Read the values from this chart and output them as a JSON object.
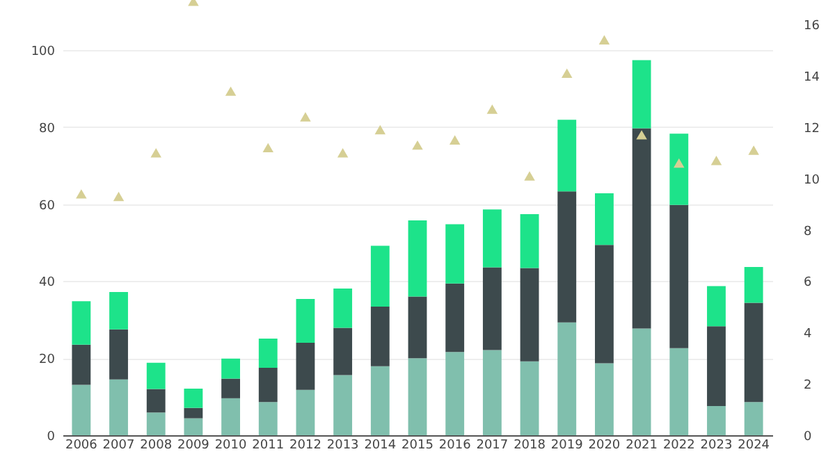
{
  "chart_data": {
    "type": "bar",
    "stacked": true,
    "categories": [
      "2006",
      "2007",
      "2008",
      "2009",
      "2010",
      "2011",
      "2012",
      "2013",
      "2014",
      "2015",
      "2016",
      "2017",
      "2018",
      "2019",
      "2020",
      "2021",
      "2022",
      "2023",
      "2024"
    ],
    "series": [
      {
        "color": "#80bfad",
        "values": [
          13.1,
          14.5,
          5.9,
          4.4,
          9.6,
          8.6,
          11.8,
          15.6,
          17.9,
          20.0,
          21.6,
          22.1,
          19.2,
          29.3,
          18.7,
          27.7,
          22.6,
          7.6,
          8.6
        ]
      },
      {
        "color": "#3d4a4d",
        "values": [
          10.4,
          13.0,
          6.1,
          2.7,
          5.1,
          8.9,
          12.2,
          12.3,
          15.5,
          16.0,
          17.8,
          21.5,
          24.2,
          34.0,
          30.7,
          52.0,
          37.2,
          20.7,
          25.8
        ]
      },
      {
        "color": "#1de38a",
        "values": [
          11.3,
          9.7,
          6.8,
          5.0,
          5.2,
          7.6,
          11.4,
          10.2,
          15.8,
          19.8,
          15.4,
          15.0,
          14.0,
          18.6,
          13.4,
          17.7,
          18.5,
          10.4,
          9.3
        ]
      },
      {
        "type": "scatter",
        "axis": "y2",
        "marker": "triangle",
        "color": "#d6cf94",
        "values": [
          9.4,
          9.3,
          11.0,
          16.9,
          13.4,
          11.2,
          12.4,
          11.0,
          11.9,
          11.3,
          11.5,
          12.7,
          10.1,
          14.1,
          15.4,
          11.7,
          10.6,
          10.7,
          11.1
        ]
      }
    ],
    "ylim": [
      0,
      113
    ],
    "yticks": [
      0,
      20,
      40,
      60,
      80,
      100
    ],
    "y2lim": [
      0,
      16.95
    ],
    "y2ticks": [
      0,
      2,
      4,
      6,
      8,
      10,
      12,
      14,
      16
    ],
    "grid": "y"
  }
}
